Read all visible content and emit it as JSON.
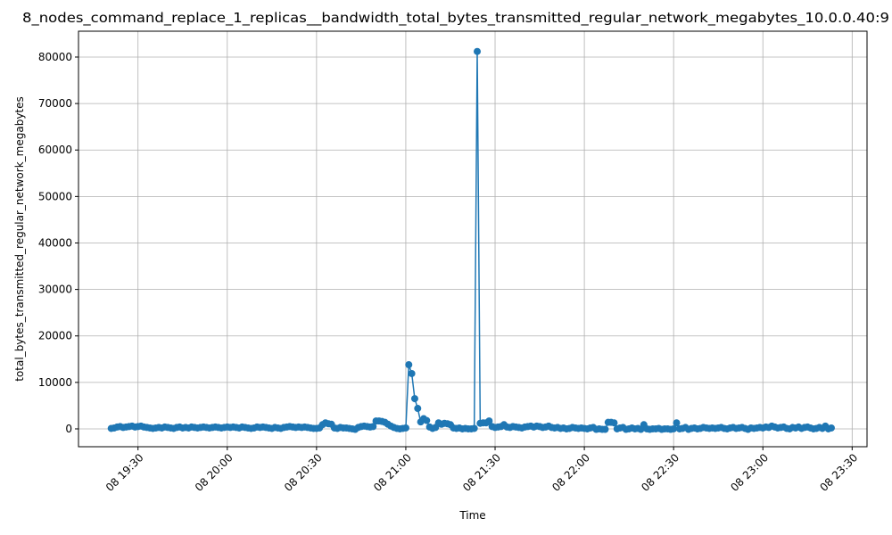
{
  "chart_data": {
    "type": "line",
    "title": "8_nodes_command_replace_1_replicas__bandwidth_total_bytes_transmitted_regular_network_megabytes_10.0.0.40:9",
    "x_label": "Time",
    "y_label": "total_bytes_transmitted_regular_network_megabytes",
    "x": [
      "08 19:21",
      "08 19:22",
      "08 19:23",
      "08 19:24",
      "08 19:25",
      "08 19:26",
      "08 19:27",
      "08 19:28",
      "08 19:29",
      "08 19:30",
      "08 19:31",
      "08 19:32",
      "08 19:33",
      "08 19:34",
      "08 19:35",
      "08 19:36",
      "08 19:37",
      "08 19:38",
      "08 19:39",
      "08 19:40",
      "08 19:41",
      "08 19:42",
      "08 19:43",
      "08 19:44",
      "08 19:45",
      "08 19:46",
      "08 19:47",
      "08 19:48",
      "08 19:49",
      "08 19:50",
      "08 19:51",
      "08 19:52",
      "08 19:53",
      "08 19:54",
      "08 19:55",
      "08 19:56",
      "08 19:57",
      "08 19:58",
      "08 19:59",
      "08 20:00",
      "08 20:01",
      "08 20:02",
      "08 20:03",
      "08 20:04",
      "08 20:05",
      "08 20:06",
      "08 20:07",
      "08 20:08",
      "08 20:09",
      "08 20:10",
      "08 20:11",
      "08 20:12",
      "08 20:13",
      "08 20:14",
      "08 20:15",
      "08 20:16",
      "08 20:17",
      "08 20:18",
      "08 20:19",
      "08 20:20",
      "08 20:21",
      "08 20:22",
      "08 20:23",
      "08 20:24",
      "08 20:25",
      "08 20:26",
      "08 20:27",
      "08 20:28",
      "08 20:29",
      "08 20:30",
      "08 20:31",
      "08 20:32",
      "08 20:33",
      "08 20:34",
      "08 20:35",
      "08 20:36",
      "08 20:37",
      "08 20:38",
      "08 20:39",
      "08 20:40",
      "08 20:41",
      "08 20:42",
      "08 20:43",
      "08 20:44",
      "08 20:45",
      "08 20:46",
      "08 20:47",
      "08 20:48",
      "08 20:49",
      "08 20:50",
      "08 20:51",
      "08 20:52",
      "08 20:53",
      "08 20:54",
      "08 20:55",
      "08 20:56",
      "08 20:57",
      "08 20:58",
      "08 20:59",
      "08 21:00",
      "08 21:01",
      "08 21:02",
      "08 21:03",
      "08 21:04",
      "08 21:05",
      "08 21:06",
      "08 21:07",
      "08 21:08",
      "08 21:09",
      "08 21:10",
      "08 21:11",
      "08 21:12",
      "08 21:13",
      "08 21:14",
      "08 21:15",
      "08 21:16",
      "08 21:17",
      "08 21:18",
      "08 21:19",
      "08 21:20",
      "08 21:21",
      "08 21:22",
      "08 21:23",
      "08 21:24",
      "08 21:25",
      "08 21:26",
      "08 21:27",
      "08 21:28",
      "08 21:29",
      "08 21:30",
      "08 21:31",
      "08 21:32",
      "08 21:33",
      "08 21:34",
      "08 21:35",
      "08 21:36",
      "08 21:37",
      "08 21:38",
      "08 21:39",
      "08 21:40",
      "08 21:41",
      "08 21:42",
      "08 21:43",
      "08 21:44",
      "08 21:45",
      "08 21:46",
      "08 21:47",
      "08 21:48",
      "08 21:49",
      "08 21:50",
      "08 21:51",
      "08 21:52",
      "08 21:53",
      "08 21:54",
      "08 21:55",
      "08 21:56",
      "08 21:57",
      "08 21:58",
      "08 21:59",
      "08 22:00",
      "08 22:01",
      "08 22:02",
      "08 22:03",
      "08 22:04",
      "08 22:05",
      "08 22:06",
      "08 22:07",
      "08 22:08",
      "08 22:09",
      "08 22:10",
      "08 22:11",
      "08 22:12",
      "08 22:13",
      "08 22:14",
      "08 22:15",
      "08 22:16",
      "08 22:17",
      "08 22:18",
      "08 22:19",
      "08 22:20",
      "08 22:21",
      "08 22:22",
      "08 22:23",
      "08 22:24",
      "08 22:25",
      "08 22:26",
      "08 22:27",
      "08 22:28",
      "08 22:29",
      "08 22:30",
      "08 22:31",
      "08 22:32",
      "08 22:33",
      "08 22:34",
      "08 22:35",
      "08 22:36",
      "08 22:37",
      "08 22:38",
      "08 22:39",
      "08 22:40",
      "08 22:41",
      "08 22:42",
      "08 22:43",
      "08 22:44",
      "08 22:45",
      "08 22:46",
      "08 22:47",
      "08 22:48",
      "08 22:49",
      "08 22:50",
      "08 22:51",
      "08 22:52",
      "08 22:53",
      "08 22:54",
      "08 22:55",
      "08 22:56",
      "08 22:57",
      "08 22:58",
      "08 22:59",
      "08 23:00",
      "08 23:01",
      "08 23:02",
      "08 23:03",
      "08 23:04",
      "08 23:05",
      "08 23:06",
      "08 23:07",
      "08 23:08",
      "08 23:09",
      "08 23:10",
      "08 23:11",
      "08 23:12",
      "08 23:13",
      "08 23:14",
      "08 23:15",
      "08 23:16",
      "08 23:17",
      "08 23:18",
      "08 23:19",
      "08 23:20",
      "08 23:21",
      "08 23:22",
      "08 23:23"
    ],
    "series": [
      {
        "color": "#1f77b4",
        "values": [
          100,
          200,
          400,
          500,
          300,
          400,
          500,
          600,
          400,
          500,
          600,
          400,
          300,
          200,
          100,
          200,
          300,
          200,
          400,
          300,
          200,
          100,
          300,
          400,
          200,
          300,
          200,
          400,
          300,
          200,
          300,
          400,
          300,
          200,
          300,
          400,
          300,
          200,
          300,
          400,
          300,
          400,
          300,
          200,
          400,
          300,
          200,
          100,
          200,
          400,
          300,
          400,
          300,
          200,
          100,
          300,
          200,
          100,
          300,
          400,
          500,
          400,
          300,
          400,
          300,
          400,
          300,
          200,
          100,
          100,
          200,
          900,
          1300,
          1100,
          1000,
          200,
          100,
          300,
          200,
          200,
          100,
          0,
          -100,
          300,
          500,
          600,
          500,
          400,
          500,
          1700,
          1700,
          1600,
          1400,
          1000,
          600,
          300,
          100,
          0,
          100,
          200,
          13800,
          11900,
          6500,
          4400,
          1500,
          2200,
          1800,
          400,
          100,
          300,
          1300,
          1000,
          1200,
          1100,
          900,
          200,
          100,
          200,
          0,
          100,
          0,
          0,
          100,
          81200,
          1200,
          1300,
          1300,
          1700,
          500,
          300,
          400,
          500,
          900,
          400,
          300,
          500,
          400,
          300,
          200,
          400,
          500,
          600,
          400,
          600,
          500,
          300,
          400,
          600,
          300,
          200,
          300,
          100,
          200,
          0,
          100,
          300,
          200,
          100,
          200,
          100,
          0,
          200,
          300,
          -100,
          0,
          -100,
          -100,
          1400,
          1400,
          1300,
          0,
          200,
          300,
          -100,
          0,
          200,
          0,
          100,
          -100,
          900,
          0,
          -100,
          0,
          0,
          100,
          -100,
          0,
          0,
          -100,
          0,
          1300,
          0,
          100,
          300,
          -100,
          100,
          200,
          0,
          100,
          300,
          200,
          100,
          200,
          100,
          200,
          300,
          100,
          0,
          200,
          300,
          100,
          200,
          300,
          100,
          -100,
          200,
          100,
          200,
          300,
          200,
          400,
          300,
          600,
          400,
          200,
          300,
          400,
          100,
          0,
          300,
          200,
          400,
          100,
          300,
          400,
          200,
          0,
          100,
          300,
          100,
          600,
          0,
          200
        ]
      }
    ],
    "xlim": [
      "08 19:10",
      "08 23:35"
    ],
    "xticks": [
      "08 19:30",
      "08 20:00",
      "08 20:30",
      "08 21:00",
      "08 21:30",
      "08 22:00",
      "08 22:30",
      "08 23:00",
      "08 23:30"
    ],
    "ylim": [
      -3840,
      85560
    ],
    "yticks": [
      0,
      10000,
      20000,
      30000,
      40000,
      50000,
      60000,
      70000,
      80000
    ],
    "grid": true,
    "markers": true
  }
}
